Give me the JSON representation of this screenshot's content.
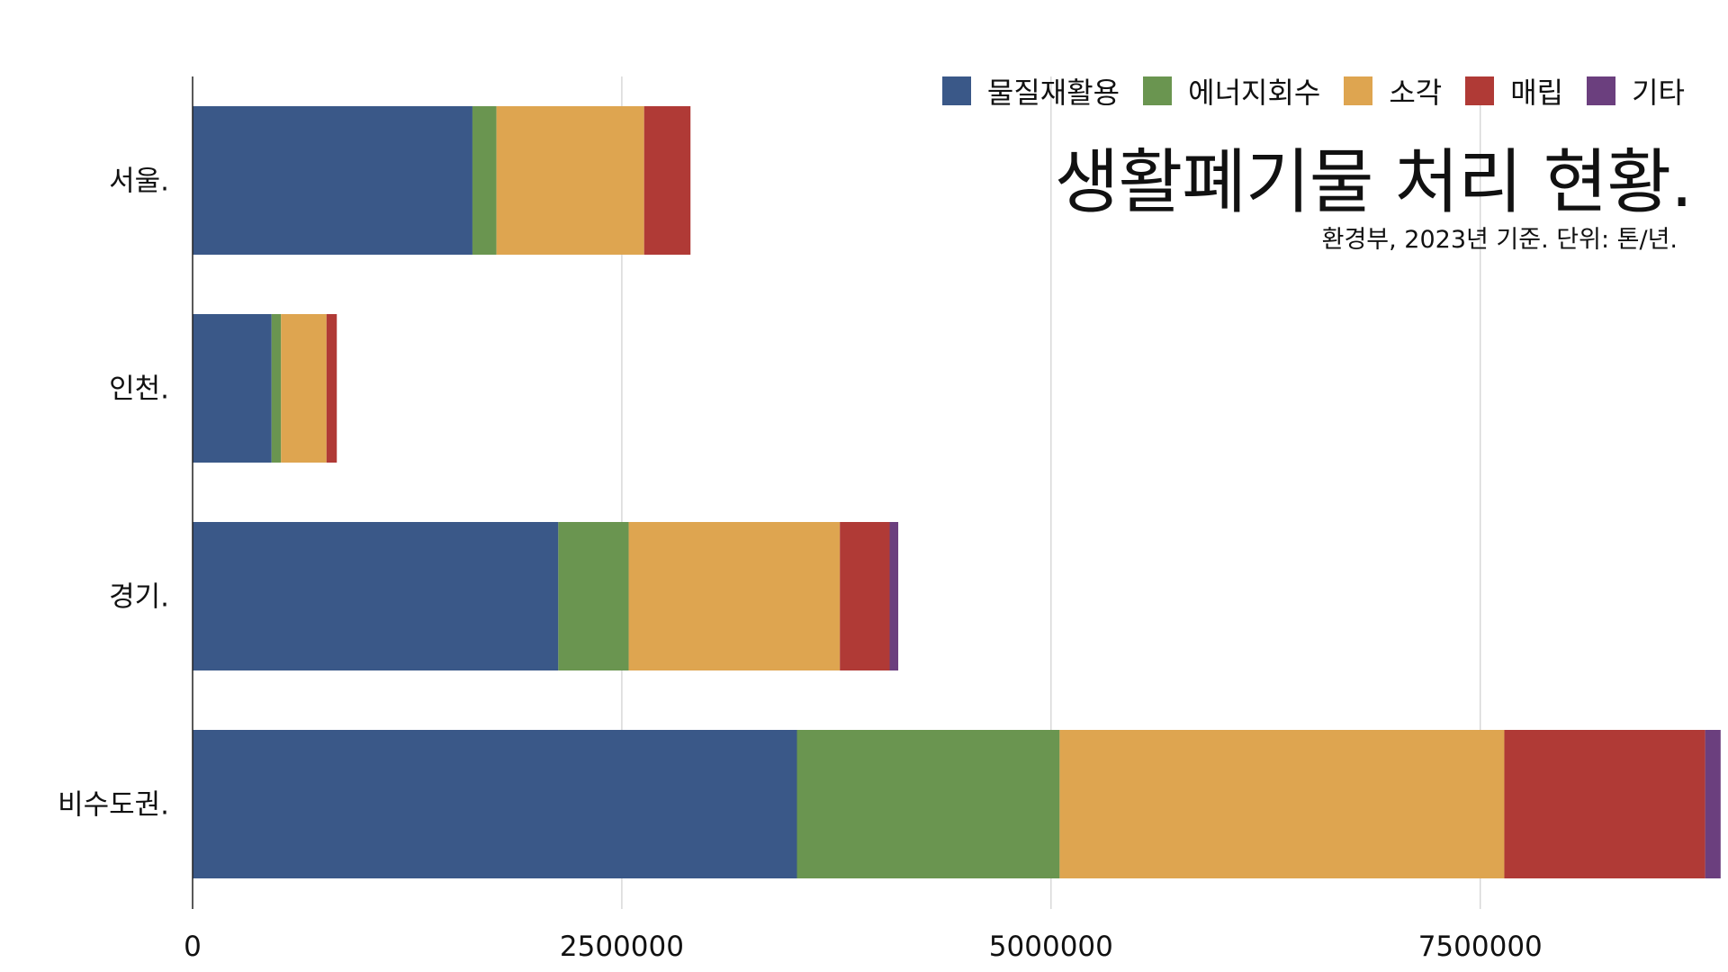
{
  "chart_data": {
    "type": "bar",
    "orientation": "horizontal",
    "stacked": true,
    "title": "생활폐기물 처리 현황.",
    "subtitle": "환경부, 2023년 기준. 단위: 톤/년.",
    "categories": [
      "서울.",
      "인천.",
      "경기.",
      "비수도권."
    ],
    "series": [
      {
        "name": "물질재활용",
        "color": "#3a5888",
        "values": [
          1630000,
          460000,
          2130000,
          3520000
        ]
      },
      {
        "name": "에너지회수",
        "color": "#6a9550",
        "values": [
          140000,
          55000,
          410000,
          1530000
        ]
      },
      {
        "name": "소각",
        "color": "#dea550",
        "values": [
          860000,
          265000,
          1230000,
          2590000
        ]
      },
      {
        "name": "매립",
        "color": "#b03a36",
        "values": [
          270000,
          60000,
          290000,
          1170000
        ]
      },
      {
        "name": "기타",
        "color": "#6b3f7e",
        "values": [
          0,
          0,
          50000,
          90000
        ]
      }
    ],
    "xlim": [
      0,
      8880000
    ],
    "xticks": [
      0,
      2500000,
      5000000,
      7500000
    ],
    "tick_labels": [
      "0",
      "2500000",
      "5000000",
      "7500000"
    ],
    "grid": "vertical",
    "legend": "top-right"
  }
}
